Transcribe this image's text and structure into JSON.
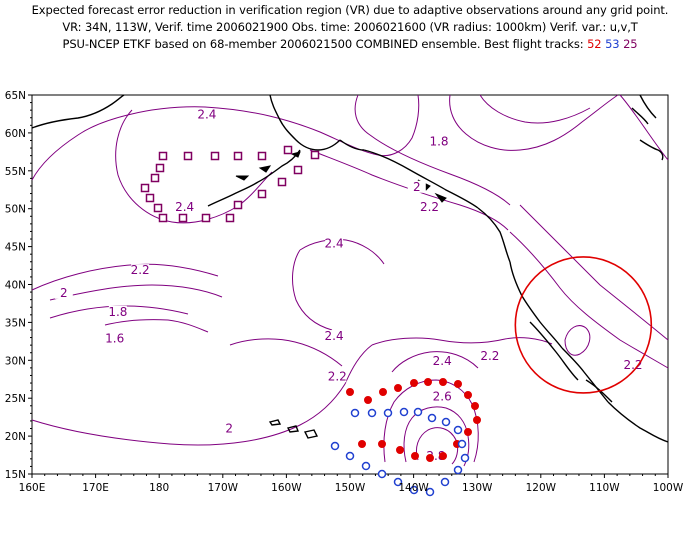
{
  "header": {
    "line1": "Expected forecast error reduction in verification region (VR) due to adaptive observations around any grid point.",
    "line2": "VR: 34N, 113W, Verif. time 2006021900   Obs. time: 2006021600 (VR radius: 1000km)    Verif. var.: u,v,T",
    "line3_prefix": "PSU-NCEP ETKF based on 68-member 2006021500 COMBINED ensemble.  Best flight tracks: ",
    "tracks": [
      {
        "label": "52",
        "color": "#e00000"
      },
      {
        "label": "53",
        "color": "#2040d0"
      },
      {
        "label": "25",
        "color": "#800060"
      }
    ]
  },
  "map": {
    "lon_range": [
      160,
      260
    ],
    "lat_range": [
      15,
      65
    ],
    "lon_ticks": [
      "160E",
      "170E",
      "180",
      "170W",
      "160W",
      "150W",
      "140W",
      "130W",
      "120W",
      "110W",
      "100W"
    ],
    "lat_ticks": [
      "15N",
      "20N",
      "25N",
      "30N",
      "35N",
      "40N",
      "45N",
      "50N",
      "55N",
      "60N",
      "65N"
    ],
    "colors": {
      "contour": "#800080",
      "coast": "#000000",
      "red": "#e00000",
      "blue": "#2040d0",
      "purple": "#800060",
      "circle": "#e00000"
    },
    "contour_labels": [
      {
        "text": "2.4",
        "lon": 187.5,
        "lat": 62.0
      },
      {
        "text": "1.8",
        "lon": 224.0,
        "lat": 58.5
      },
      {
        "text": "2",
        "lon": 220.5,
        "lat": 52.5
      },
      {
        "text": "2.2",
        "lon": 222.5,
        "lat": 49.8
      },
      {
        "text": "2.4",
        "lon": 184.0,
        "lat": 49.8
      },
      {
        "text": "2.4",
        "lon": 207.5,
        "lat": 45.0
      },
      {
        "text": "2.2",
        "lon": 177.0,
        "lat": 41.5
      },
      {
        "text": "2",
        "lon": 165.0,
        "lat": 38.5
      },
      {
        "text": "1.8",
        "lon": 173.5,
        "lat": 36.0
      },
      {
        "text": "1.6",
        "lon": 173.0,
        "lat": 32.5
      },
      {
        "text": "2.4",
        "lon": 207.5,
        "lat": 32.8
      },
      {
        "text": "2.4",
        "lon": 224.5,
        "lat": 29.5
      },
      {
        "text": "2.2",
        "lon": 232.0,
        "lat": 30.2
      },
      {
        "text": "2.2",
        "lon": 254.5,
        "lat": 29.0
      },
      {
        "text": "2.2",
        "lon": 208.0,
        "lat": 27.5
      },
      {
        "text": "2.6",
        "lon": 224.5,
        "lat": 24.8
      },
      {
        "text": "2",
        "lon": 191.0,
        "lat": 20.6
      },
      {
        "text": "2.8",
        "lon": 223.5,
        "lat": 17.0
      }
    ],
    "verification_region": {
      "lon": 247.0,
      "lat": 34.0
    }
  }
}
